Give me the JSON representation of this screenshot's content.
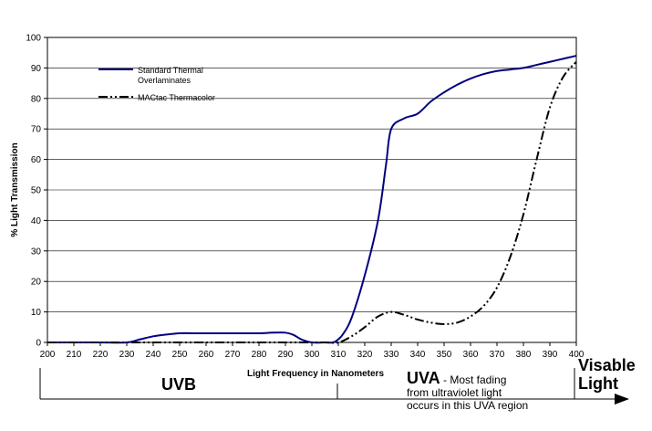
{
  "chart_data": {
    "type": "line",
    "xlabel": "Light Frequency in Nanometers",
    "ylabel": "% Light Transmission",
    "xlim": [
      200,
      400
    ],
    "ylim": [
      0,
      100
    ],
    "x_ticks": [
      200,
      210,
      220,
      230,
      240,
      250,
      260,
      270,
      280,
      290,
      300,
      310,
      320,
      330,
      340,
      350,
      360,
      370,
      380,
      390,
      400
    ],
    "y_ticks": [
      0,
      10,
      20,
      30,
      40,
      50,
      60,
      70,
      80,
      90,
      100
    ],
    "grid": "horizontal",
    "legend_position": "top-left",
    "series": [
      {
        "name_lines": [
          "Standard Thermal",
          "Overlaminates"
        ],
        "color": "#00007f",
        "style": "solid",
        "x": [
          200,
          210,
          220,
          230,
          235,
          240,
          245,
          250,
          255,
          260,
          270,
          280,
          285,
          290,
          293,
          296,
          300,
          305,
          308,
          310,
          312,
          315,
          320,
          325,
          328,
          330,
          335,
          340,
          345,
          350,
          355,
          360,
          365,
          370,
          375,
          380,
          385,
          390,
          395,
          400
        ],
        "y": [
          0,
          0,
          0,
          0,
          1,
          2,
          2.6,
          3,
          3,
          3,
          3,
          3,
          3.2,
          3.2,
          2.5,
          1,
          0,
          0,
          0,
          1,
          3,
          8,
          22,
          40,
          58,
          70,
          73.5,
          75,
          79,
          82,
          84.5,
          86.5,
          88,
          89,
          89.5,
          90,
          91,
          92,
          93,
          94
        ]
      },
      {
        "name": "MACtac Thermacolor",
        "color": "#000000",
        "style": "dash-dot-dot",
        "x": [
          200,
          210,
          220,
          230,
          240,
          250,
          260,
          270,
          280,
          290,
          300,
          305,
          310,
          315,
          320,
          325,
          330,
          335,
          340,
          345,
          350,
          355,
          360,
          365,
          370,
          375,
          380,
          385,
          390,
          395,
          400
        ],
        "y": [
          0,
          0,
          0,
          0,
          0,
          0,
          0,
          0,
          0,
          0,
          0,
          0,
          0,
          2,
          5,
          8.5,
          10,
          9,
          7.5,
          6.5,
          6,
          6.5,
          8.5,
          12,
          18,
          28,
          42,
          60,
          77,
          87,
          92
        ]
      }
    ]
  },
  "regions": {
    "uvb": "UVB",
    "uva_title": "UVA",
    "uva_note_line1": " - Most fading",
    "uva_note_line2": "from ultraviolet light",
    "uva_note_line3": "occurs in this UVA region",
    "visible_line1": "Visable",
    "visible_line2": "Light"
  }
}
